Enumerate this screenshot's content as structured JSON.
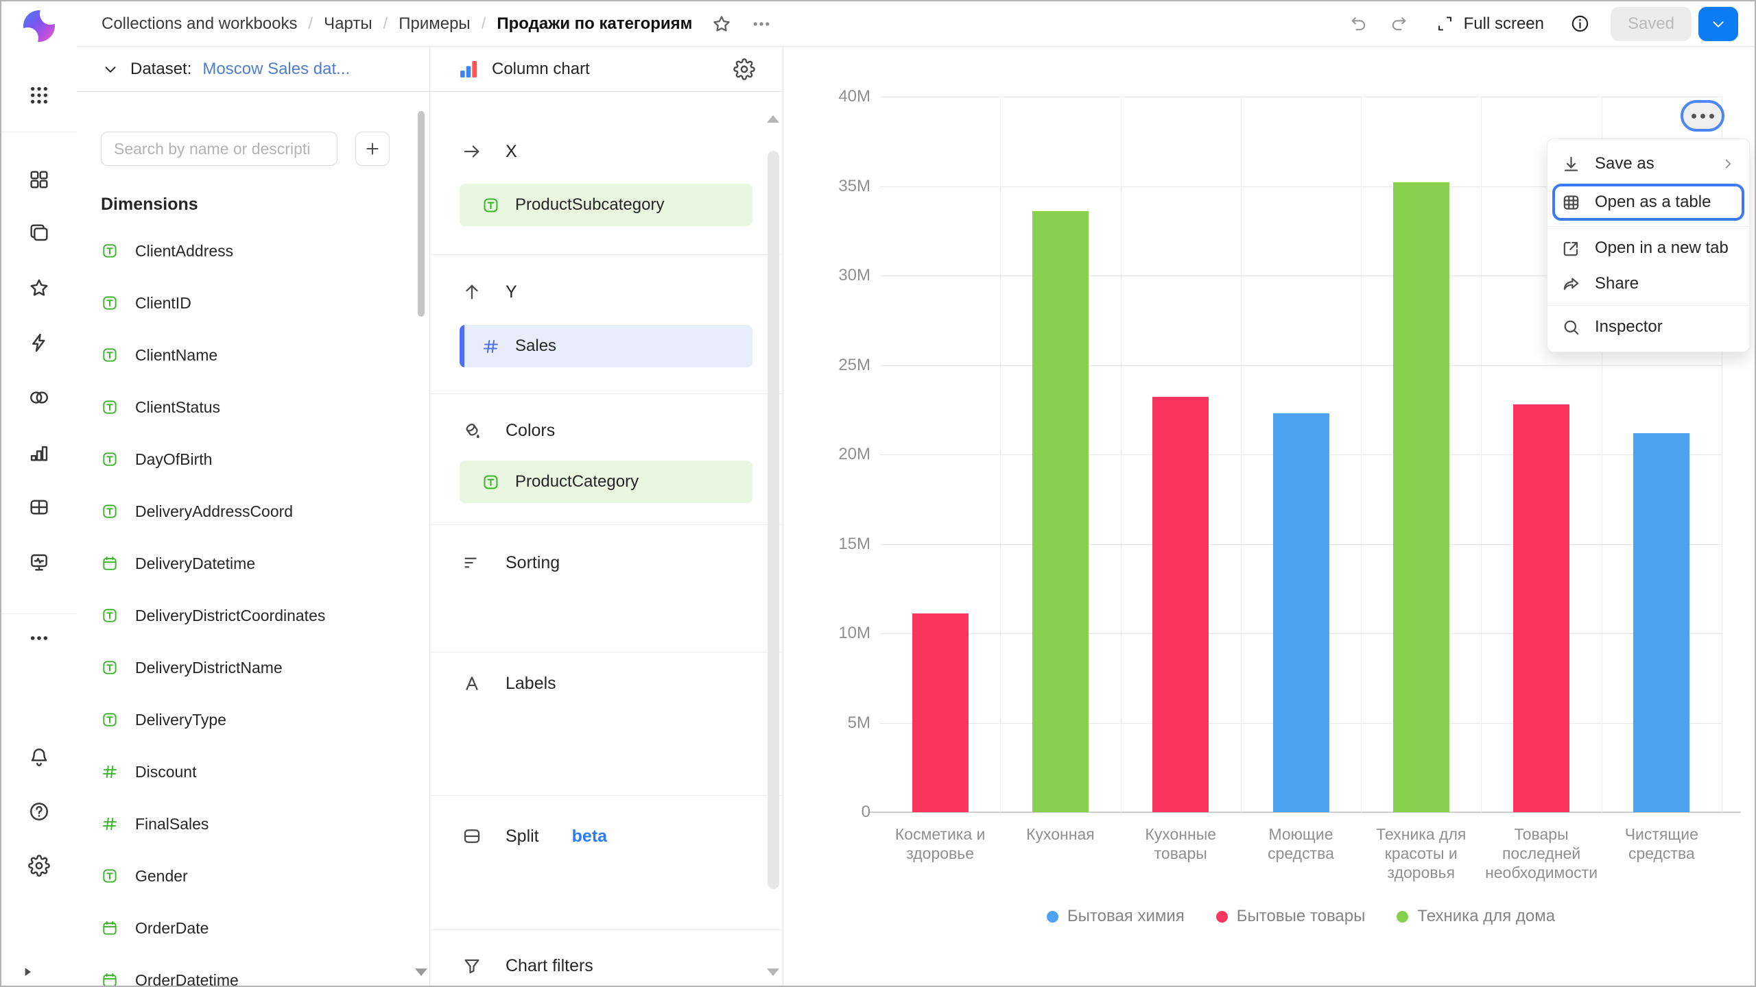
{
  "topbar": {
    "breadcrumbs": [
      "Collections and workbooks",
      "Чарты",
      "Примеры",
      "Продажи по категориям"
    ],
    "full_screen_label": "Full screen",
    "saved_label": "Saved"
  },
  "left_rail": {
    "logo": "datalens-logo",
    "apps_icon": "apps-grid",
    "main_icons": [
      "tiles",
      "workbooks",
      "star",
      "bolt",
      "connections",
      "chart-bars",
      "grid-table",
      "monitor-pulse",
      "more-dots"
    ],
    "footer_icons": [
      "bell",
      "help",
      "gear"
    ],
    "collapse_icon": "play-triangle"
  },
  "dataset_panel": {
    "dataset_label": "Dataset:",
    "dataset_name": "Moscow Sales dat...",
    "search_placeholder": "Search by name or descripti",
    "add_button": "+",
    "dimensions_title": "Dimensions",
    "fields": [
      {
        "name": "ClientAddress",
        "type": "text"
      },
      {
        "name": "ClientID",
        "type": "text"
      },
      {
        "name": "ClientName",
        "type": "text"
      },
      {
        "name": "ClientStatus",
        "type": "text"
      },
      {
        "name": "DayOfBirth",
        "type": "text"
      },
      {
        "name": "DeliveryAddressCoord",
        "type": "text"
      },
      {
        "name": "DeliveryDatetime",
        "type": "date"
      },
      {
        "name": "DeliveryDistrictCoordinates",
        "type": "text"
      },
      {
        "name": "DeliveryDistrictName",
        "type": "text"
      },
      {
        "name": "DeliveryType",
        "type": "text"
      },
      {
        "name": "Discount",
        "type": "number"
      },
      {
        "name": "FinalSales",
        "type": "number"
      },
      {
        "name": "Gender",
        "type": "text"
      },
      {
        "name": "OrderDate",
        "type": "date"
      },
      {
        "name": "OrderDatetime",
        "type": "date"
      }
    ]
  },
  "config_panel": {
    "chart_type": "Column chart",
    "sections": [
      {
        "id": "x",
        "label": "X",
        "icon": "arrow-right",
        "field": {
          "name": "ProductSubcategory",
          "type": "text",
          "kind": "dimension"
        }
      },
      {
        "id": "y",
        "label": "Y",
        "icon": "arrow-up",
        "field": {
          "name": "Sales",
          "type": "number",
          "kind": "measure"
        }
      },
      {
        "id": "colors",
        "label": "Colors",
        "icon": "paint",
        "field": {
          "name": "ProductCategory",
          "type": "text",
          "kind": "dimension"
        }
      },
      {
        "id": "sorting",
        "label": "Sorting",
        "icon": "sort"
      },
      {
        "id": "labels",
        "label": "Labels",
        "icon": "labels-a"
      },
      {
        "id": "split",
        "label": "Split",
        "icon": "split",
        "badge": "beta"
      },
      {
        "id": "chart-filters",
        "label": "Chart filters",
        "icon": "funnel"
      }
    ]
  },
  "context_menu": {
    "items": [
      {
        "label": "Save as",
        "icon": "download",
        "submenu": true
      },
      {
        "label": "Open as a table",
        "icon": "table-menu",
        "highlighted": true
      },
      {
        "divider": true
      },
      {
        "label": "Open in a new tab",
        "icon": "external-link"
      },
      {
        "label": "Share",
        "icon": "share"
      },
      {
        "divider": true
      },
      {
        "label": "Inspector",
        "icon": "magnifier"
      }
    ],
    "highlight_color": "#3b79f7"
  },
  "chart_data": {
    "type": "bar",
    "title": "",
    "xlabel": "",
    "ylabel": "",
    "categories": [
      "Косметика и здоровье",
      "Кухонная",
      "Кухонные товары",
      "Моющие средства",
      "Техника для красоты и здоровья",
      "Товары последней необходимости",
      "Чистящие средства"
    ],
    "category_lines": [
      [
        "Косметика и",
        "здоровье"
      ],
      [
        "Кухонная"
      ],
      [
        "Кухонные",
        "товары"
      ],
      [
        "Моющие",
        "средства"
      ],
      [
        "Техника для",
        "красоты и",
        "здоровья"
      ],
      [
        "Товары",
        "последней",
        "необходимости"
      ],
      [
        "Чистящие",
        "средства"
      ]
    ],
    "values_m": [
      11.1,
      33.6,
      23.2,
      22.3,
      35.2,
      22.8,
      21.2
    ],
    "value_unit": "M",
    "bar_series": [
      "Бытовые товары",
      "Техника для дома",
      "Бытовые товары",
      "Бытовая химия",
      "Техника для дома",
      "Бытовые товары",
      "Бытовая химия"
    ],
    "series": [
      {
        "name": "Бытовая химия",
        "color": "#4da2f1"
      },
      {
        "name": "Бытовые товары",
        "color": "#f8345f"
      },
      {
        "name": "Техника для дома",
        "color": "#87d14e"
      }
    ],
    "ylim_m": [
      0,
      40
    ],
    "yticks": [
      "0",
      "5M",
      "10M",
      "15M",
      "20M",
      "25M",
      "30M",
      "35M",
      "40M"
    ],
    "grid": true,
    "legend_position": "bottom"
  }
}
